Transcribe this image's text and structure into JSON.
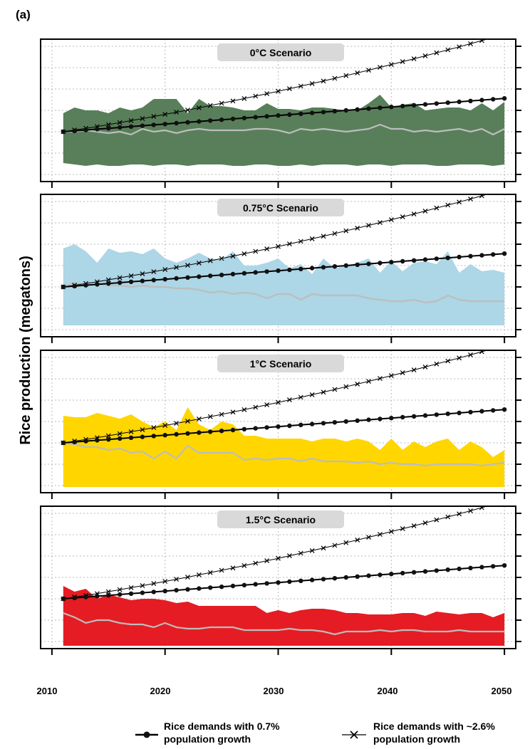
{
  "figure": {
    "panel_label": "(a)",
    "ylabel": "Rice production (megatons)",
    "xticks": [
      "2010",
      "2020",
      "2030",
      "2040",
      "2050"
    ]
  },
  "legend": {
    "entries": [
      {
        "line1": "Rice demands with 0.7%",
        "line2": "population growth",
        "marker": "circle"
      },
      {
        "line1": "Rice demands with ~2.6%",
        "line2": "population growth",
        "marker": "cross"
      }
    ]
  },
  "colors": {
    "scenario_0": "#587F59",
    "scenario_075": "#ADD6E6",
    "scenario_1": "#FFD600",
    "scenario_15": "#E51C23",
    "median_line": "#BDBDBD",
    "grid": "#BBBBBB",
    "title_box": "#D9D9D9"
  },
  "chart_data": [
    {
      "type": "area",
      "title": "0°C Scenario",
      "x_start": 2011,
      "x_end": 2050,
      "xlim": [
        2009,
        2051
      ],
      "ylim": [
        0,
        100
      ],
      "yticks": [
        5,
        20,
        35,
        50,
        65,
        80,
        95
      ],
      "upper": [
        48,
        52,
        50,
        50,
        48,
        52,
        50,
        52,
        58,
        58,
        58,
        48,
        58,
        53,
        53,
        52,
        50,
        50,
        55,
        51,
        51,
        50,
        52,
        52,
        51,
        50,
        50,
        55,
        61,
        52,
        54,
        55,
        50,
        51,
        52,
        52,
        50,
        55,
        50,
        56
      ],
      "lower": [
        13,
        12,
        11,
        12,
        11,
        11,
        12,
        12,
        11,
        12,
        12,
        11,
        12,
        12,
        12,
        11,
        11,
        12,
        12,
        11,
        11,
        12,
        11,
        12,
        12,
        12,
        11,
        12,
        12,
        11,
        12,
        12,
        12,
        11,
        11,
        12,
        12,
        12,
        11,
        12
      ],
      "median": [
        35,
        35,
        36,
        35,
        34,
        35,
        33,
        37,
        35,
        36,
        34,
        36,
        37,
        36,
        36,
        36,
        36,
        37,
        37,
        36,
        34,
        37,
        36,
        37,
        36,
        35,
        36,
        37,
        40,
        37,
        37,
        35,
        36,
        35,
        36,
        37,
        35,
        37,
        33,
        37
      ],
      "demand_07": [
        35,
        35.6,
        36.2,
        36.8,
        37.4,
        38,
        38.6,
        39.2,
        39.8,
        40.4,
        41,
        41.6,
        42.2,
        42.8,
        43.4,
        44,
        44.6,
        45.2,
        45.8,
        46.4,
        47,
        47.6,
        48.2,
        48.8,
        49.4,
        50,
        50.6,
        51.2,
        51.8,
        52.4,
        53,
        53.6,
        54.2,
        54.8,
        55.4,
        56,
        56.6,
        57.2,
        57.8,
        58.4
      ],
      "demand_26": [
        35,
        36.2,
        37.4,
        38.6,
        40,
        41.4,
        42.8,
        44.2,
        45.7,
        47.2,
        48.7,
        50.2,
        51.8,
        53.4,
        55,
        56.6,
        58.3,
        60,
        61.7,
        63.4,
        65.2,
        67,
        68.8,
        70.6,
        72.5,
        74.4,
        76.3,
        78.2,
        80.2,
        82.2,
        84.2,
        86.2,
        88.3,
        90.4,
        92.5,
        94.6,
        96.8,
        99,
        101.2,
        103.4
      ]
    },
    {
      "type": "area",
      "title": "0.75°C Scenario",
      "x_start": 2011,
      "x_end": 2050,
      "xlim": [
        2009,
        2051
      ],
      "ylim": [
        0,
        100
      ],
      "yticks": [
        5,
        20,
        35,
        50,
        65,
        80,
        95
      ],
      "upper": [
        62,
        65,
        60,
        52,
        62,
        59,
        60,
        58,
        62,
        55,
        52,
        55,
        59,
        55,
        54,
        60,
        50,
        50,
        52,
        55,
        48,
        51,
        44,
        55,
        48,
        50,
        52,
        55,
        45,
        53,
        46,
        52,
        53,
        51,
        60,
        45,
        51,
        46,
        47,
        45
      ],
      "lower": [
        8,
        8,
        8,
        8,
        8,
        8,
        8,
        8,
        8,
        8,
        8,
        8,
        8,
        8,
        8,
        8,
        8,
        8,
        8,
        8,
        8,
        8,
        8,
        8,
        8,
        8,
        8,
        8,
        8,
        8,
        8,
        8,
        8,
        8,
        8,
        8,
        8,
        8,
        8,
        8
      ],
      "median": [
        35,
        38,
        36,
        37,
        36,
        36,
        35,
        36,
        35,
        35,
        34,
        34,
        33,
        31,
        32,
        30,
        31,
        30,
        27,
        30,
        30,
        26,
        30,
        29,
        29,
        29,
        29,
        27,
        26,
        25,
        25,
        26,
        24,
        25,
        29,
        26,
        25,
        25,
        25,
        25
      ],
      "demand_07": [
        35,
        35.6,
        36.2,
        36.8,
        37.4,
        38,
        38.6,
        39.2,
        39.8,
        40.4,
        41,
        41.6,
        42.2,
        42.8,
        43.4,
        44,
        44.6,
        45.2,
        45.8,
        46.4,
        47,
        47.6,
        48.2,
        48.8,
        49.4,
        50,
        50.6,
        51.2,
        51.8,
        52.4,
        53,
        53.6,
        54.2,
        54.8,
        55.4,
        56,
        56.6,
        57.2,
        57.8,
        58.4
      ],
      "demand_26": [
        35,
        36.2,
        37.4,
        38.6,
        40,
        41.4,
        42.8,
        44.2,
        45.7,
        47.2,
        48.7,
        50.2,
        51.8,
        53.4,
        55,
        56.6,
        58.3,
        60,
        61.7,
        63.4,
        65.2,
        67,
        68.8,
        70.6,
        72.5,
        74.4,
        76.3,
        78.2,
        80.2,
        82.2,
        84.2,
        86.2,
        88.3,
        90.4,
        92.5,
        94.6,
        96.8,
        99,
        101.2,
        103.4
      ]
    },
    {
      "type": "area",
      "title": "1°C Scenario",
      "x_start": 2011,
      "x_end": 2050,
      "xlim": [
        2009,
        2051
      ],
      "ylim": [
        0,
        100
      ],
      "yticks": [
        5,
        20,
        35,
        50,
        65,
        80,
        95
      ],
      "upper": [
        54,
        53,
        53,
        56,
        54,
        52,
        55,
        50,
        46,
        50,
        44,
        60,
        48,
        44,
        50,
        48,
        40,
        40,
        38,
        38,
        38,
        38,
        36,
        38,
        38,
        36,
        38,
        36,
        30,
        38,
        30,
        36,
        32,
        36,
        38,
        30,
        36,
        32,
        25,
        30
      ],
      "lower": [
        4,
        4,
        4,
        4,
        4,
        4,
        4,
        4,
        4,
        4,
        4,
        4,
        4,
        4,
        4,
        4,
        4,
        4,
        4,
        4,
        4,
        4,
        4,
        4,
        4,
        4,
        4,
        4,
        4,
        4,
        4,
        4,
        4,
        4,
        4,
        4,
        4,
        4,
        4,
        4
      ],
      "median": [
        35,
        34,
        32,
        32,
        30,
        31,
        28,
        29,
        24,
        29,
        24,
        33,
        28,
        28,
        28,
        28,
        23,
        24,
        23,
        24,
        24,
        22,
        24,
        22,
        22,
        22,
        21,
        22,
        20,
        21,
        20,
        20,
        19,
        20,
        20,
        20,
        20,
        19,
        20,
        21
      ],
      "demand_07": [
        35,
        35.6,
        36.2,
        36.8,
        37.4,
        38,
        38.6,
        39.2,
        39.8,
        40.4,
        41,
        41.6,
        42.2,
        42.8,
        43.4,
        44,
        44.6,
        45.2,
        45.8,
        46.4,
        47,
        47.6,
        48.2,
        48.8,
        49.4,
        50,
        50.6,
        51.2,
        51.8,
        52.4,
        53,
        53.6,
        54.2,
        54.8,
        55.4,
        56,
        56.6,
        57.2,
        57.8,
        58.4
      ],
      "demand_26": [
        35,
        36.2,
        37.4,
        38.6,
        40,
        41.4,
        42.8,
        44.2,
        45.7,
        47.2,
        48.7,
        50.2,
        51.8,
        53.4,
        55,
        56.6,
        58.3,
        60,
        61.7,
        63.4,
        65.2,
        67,
        68.8,
        70.6,
        72.5,
        74.4,
        76.3,
        78.2,
        80.2,
        82.2,
        84.2,
        86.2,
        88.3,
        90.4,
        92.5,
        94.6,
        96.8,
        99,
        101.2,
        103.4
      ]
    },
    {
      "type": "area",
      "title": "1.5°C Scenario",
      "x_start": 2011,
      "x_end": 2050,
      "xlim": [
        2009,
        2051
      ],
      "ylim": [
        0,
        100
      ],
      "yticks": [
        5,
        20,
        35,
        50,
        65,
        80,
        95
      ],
      "upper": [
        44,
        40,
        42,
        35,
        38,
        36,
        34,
        35,
        35,
        34,
        32,
        33,
        30,
        30,
        30,
        30,
        30,
        30,
        25,
        27,
        25,
        27,
        28,
        28,
        27,
        25,
        25,
        24,
        24,
        24,
        25,
        25,
        23,
        26,
        25,
        24,
        25,
        25,
        22,
        25
      ],
      "lower": [
        2,
        2,
        2,
        2,
        2,
        2,
        2,
        2,
        2,
        2,
        2,
        2,
        2,
        2,
        2,
        2,
        2,
        2,
        2,
        2,
        2,
        2,
        2,
        2,
        2,
        2,
        2,
        2,
        2,
        2,
        2,
        2,
        2,
        2,
        2,
        2,
        2,
        2,
        2,
        2
      ],
      "median": [
        25,
        22,
        18,
        20,
        20,
        18,
        17,
        17,
        15,
        18,
        15,
        14,
        14,
        15,
        15,
        15,
        13,
        13,
        13,
        13,
        14,
        13,
        13,
        12,
        10,
        12,
        12,
        12,
        13,
        12,
        13,
        13,
        12,
        12,
        12,
        13,
        12,
        12,
        12,
        12
      ],
      "demand_07": [
        35,
        35.6,
        36.2,
        36.8,
        37.4,
        38,
        38.6,
        39.2,
        39.8,
        40.4,
        41,
        41.6,
        42.2,
        42.8,
        43.4,
        44,
        44.6,
        45.2,
        45.8,
        46.4,
        47,
        47.6,
        48.2,
        48.8,
        49.4,
        50,
        50.6,
        51.2,
        51.8,
        52.4,
        53,
        53.6,
        54.2,
        54.8,
        55.4,
        56,
        56.6,
        57.2,
        57.8,
        58.4
      ],
      "demand_26": [
        35,
        36.2,
        37.4,
        38.6,
        40,
        41.4,
        42.8,
        44.2,
        45.7,
        47.2,
        48.7,
        50.2,
        51.8,
        53.4,
        55,
        56.6,
        58.3,
        60,
        61.7,
        63.4,
        65.2,
        67,
        68.8,
        70.6,
        72.5,
        74.4,
        76.3,
        78.2,
        80.2,
        82.2,
        84.2,
        86.2,
        88.3,
        90.4,
        92.5,
        94.6,
        96.8,
        99,
        101.2,
        103.4
      ]
    }
  ]
}
